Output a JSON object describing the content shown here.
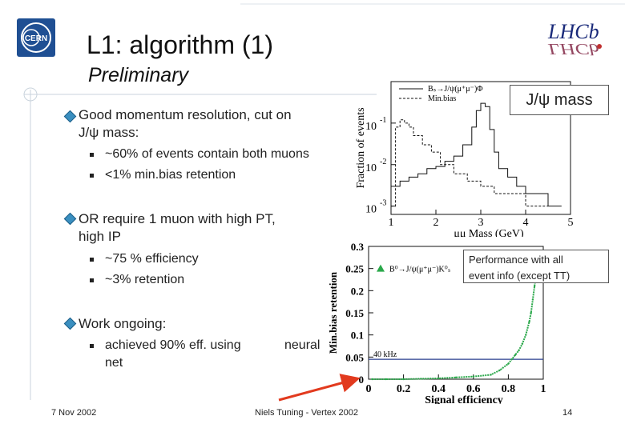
{
  "slide": {
    "title": "L1: algorithm (1)",
    "subtitle": "Preliminary",
    "bullets": [
      {
        "text_lines": [
          "Good momentum resolution, cut on",
          "J/ψ mass:"
        ],
        "subs": [
          "~60% of events contain both muons",
          "<1% min.bias retention"
        ]
      },
      {
        "text_lines": [
          "OR require 1 muon with high PT,",
          "high IP"
        ],
        "subs": [
          "~75 % efficiency",
          "~3% retention"
        ]
      },
      {
        "text_lines": [
          "Work ongoing:"
        ],
        "subs": [
          "achieved 90% eff. using",
          "neural",
          "net"
        ]
      }
    ],
    "callouts": {
      "jpsi_mass": "J/ψ mass",
      "performance": [
        "Performance with all",
        "event info (except TT)"
      ]
    },
    "footer": {
      "date": "7 Nov 2002",
      "center": "Niels Tuning - Vertex 2002",
      "page": "14"
    },
    "logos": {
      "cern_text": "CERN",
      "lhcb_text": "LHCb"
    }
  },
  "chart_data": [
    {
      "type": "line",
      "title": "",
      "xlabel": "μμ Mass (GeV)",
      "ylabel": "Fraction of events",
      "xlim": [
        1,
        5
      ],
      "y_scale": "log",
      "x_ticks": [
        "1",
        "2",
        "3",
        "4",
        "5"
      ],
      "y_ticks": [
        "10",
        "10",
        "10"
      ],
      "y_tick_exponents": [
        "-1",
        "-2",
        "-3"
      ],
      "legend": [
        "Bₛ→J/ψ(μ⁺μ⁻)Φ",
        "Min.bias"
      ],
      "series": [
        {
          "name": "Bₛ→J/ψ(μ⁺μ⁻)Φ",
          "style": "solid",
          "x": [
            1.0,
            1.2,
            1.4,
            1.6,
            1.8,
            2.0,
            2.2,
            2.4,
            2.6,
            2.8,
            2.9,
            3.0,
            3.1,
            3.2,
            3.3,
            3.4,
            3.6,
            3.8,
            4.0,
            4.2,
            4.5,
            4.8
          ],
          "y": [
            0.003,
            0.004,
            0.005,
            0.006,
            0.008,
            0.009,
            0.012,
            0.016,
            0.03,
            0.08,
            0.2,
            0.3,
            0.25,
            0.07,
            0.02,
            0.008,
            0.005,
            0.003,
            0.002,
            0.002,
            0.001,
            0.001
          ]
        },
        {
          "name": "Min.bias",
          "style": "dashed",
          "x": [
            1.0,
            1.1,
            1.2,
            1.3,
            1.4,
            1.5,
            1.7,
            1.9,
            2.1,
            2.4,
            2.7,
            3.0,
            3.3,
            3.6,
            4.0,
            4.5
          ],
          "y": [
            0.001,
            0.08,
            0.12,
            0.1,
            0.08,
            0.05,
            0.03,
            0.02,
            0.01,
            0.006,
            0.004,
            0.003,
            0.002,
            0.002,
            0.001,
            0.001
          ]
        }
      ]
    },
    {
      "type": "line",
      "title": "",
      "xlabel": "Signal efficiency",
      "ylabel": "Min.bias retention",
      "xlim": [
        0,
        1
      ],
      "ylim": [
        0,
        0.3
      ],
      "x_ticks": [
        "0",
        "0.2",
        "0.4",
        "0.6",
        "0.8",
        "1"
      ],
      "y_ticks": [
        "0",
        "0.05",
        "0.1",
        "0.15",
        "0.2",
        "0.25",
        "0.3"
      ],
      "legend": [
        "B⁰→J/ψ(μ⁺μ⁻)K⁰ₛ"
      ],
      "annotations": [
        "40 kHz"
      ],
      "reference_line_y": 0.045,
      "series": [
        {
          "name": "B⁰→J/ψ(μ⁺μ⁻)K⁰ₛ",
          "x": [
            0.02,
            0.1,
            0.2,
            0.3,
            0.4,
            0.5,
            0.6,
            0.7,
            0.75,
            0.8,
            0.82,
            0.84,
            0.86,
            0.88,
            0.9,
            0.92,
            0.93,
            0.94,
            0.95,
            0.96,
            0.965,
            0.97
          ],
          "y": [
            0.0,
            0.0,
            0.0,
            0.001,
            0.002,
            0.004,
            0.006,
            0.01,
            0.02,
            0.035,
            0.045,
            0.055,
            0.065,
            0.08,
            0.1,
            0.13,
            0.15,
            0.18,
            0.21,
            0.24,
            0.26,
            0.28
          ]
        }
      ]
    }
  ]
}
